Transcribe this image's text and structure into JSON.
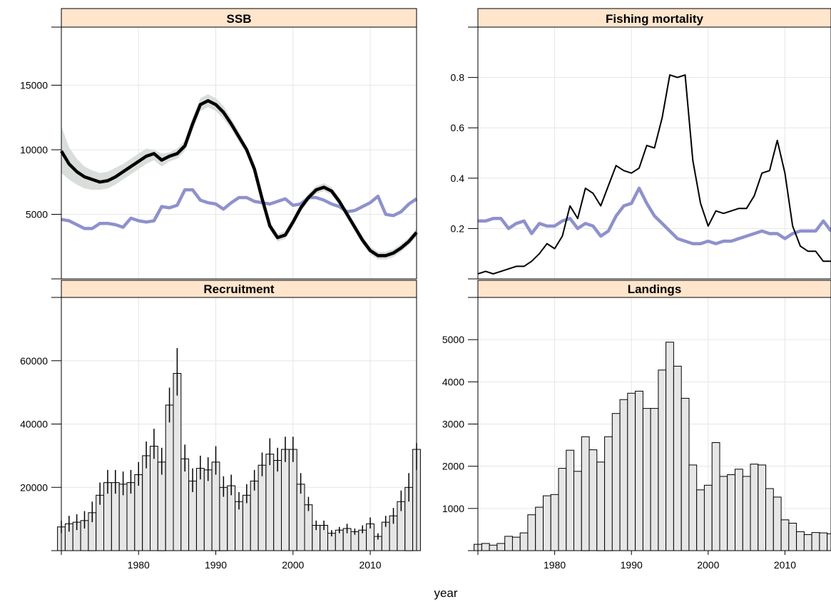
{
  "figure": {
    "xlabel": "year",
    "colors": {
      "strip_fill": "#FFE5CC",
      "grid": "#E6E6E6",
      "band": "#D9DEDB",
      "bar_fill": "#E6E6E6",
      "reference_line": "#8E91CC",
      "main_line": "#000000"
    }
  },
  "chart_data": [
    {
      "id": "ssb",
      "type": "line",
      "title": "SSB",
      "xlim": [
        1970,
        2016
      ],
      "ylim": [
        0,
        19500
      ],
      "yticks": [
        5000,
        10000,
        15000
      ],
      "xticks": [],
      "x": [
        1970,
        1971,
        1972,
        1973,
        1974,
        1975,
        1976,
        1977,
        1978,
        1979,
        1980,
        1981,
        1982,
        1983,
        1984,
        1985,
        1986,
        1987,
        1988,
        1989,
        1990,
        1991,
        1992,
        1993,
        1994,
        1995,
        1996,
        1997,
        1998,
        1999,
        2000,
        2001,
        2002,
        2003,
        2004,
        2005,
        2006,
        2007,
        2008,
        2009,
        2010,
        2011,
        2012,
        2013,
        2014,
        2015,
        2016
      ],
      "series": [
        {
          "role": "estimate",
          "values": [
            9900,
            8900,
            8300,
            7900,
            7700,
            7500,
            7600,
            7900,
            8300,
            8700,
            9100,
            9500,
            9700,
            9200,
            9500,
            9700,
            10300,
            12000,
            13500,
            13800,
            13500,
            12900,
            12000,
            11000,
            10000,
            8500,
            6200,
            4100,
            3200,
            3400,
            4400,
            5500,
            6300,
            6900,
            7100,
            6800,
            6000,
            5000,
            4000,
            3000,
            2200,
            1800,
            1800,
            2000,
            2400,
            2900,
            3600
          ]
        },
        {
          "role": "upper-ci",
          "values": [
            11800,
            10200,
            9300,
            8700,
            8400,
            8200,
            8300,
            8600,
            8900,
            9300,
            9700,
            10100,
            10000,
            9700,
            9800,
            10100,
            10700,
            12500,
            14000,
            14300,
            14000,
            13400,
            12400,
            11400,
            10300,
            8800,
            6500,
            4400,
            3500,
            3700,
            4700,
            5800,
            6600,
            7200,
            7400,
            7100,
            6300,
            5300,
            4300,
            3300,
            2500,
            2100,
            2100,
            2300,
            2700,
            3200,
            3900
          ]
        },
        {
          "role": "lower-ci",
          "values": [
            8200,
            7700,
            7300,
            7000,
            6900,
            6900,
            7000,
            7300,
            7700,
            8100,
            8500,
            8900,
            9200,
            8700,
            9100,
            9300,
            9900,
            11500,
            13000,
            13300,
            13000,
            12400,
            11600,
            10600,
            9700,
            8200,
            5900,
            3800,
            2900,
            3100,
            4100,
            5200,
            6000,
            6600,
            6800,
            6500,
            5700,
            4700,
            3700,
            2700,
            1900,
            1500,
            1500,
            1700,
            2100,
            2600,
            3300
          ]
        },
        {
          "role": "reference",
          "values": [
            4600,
            4500,
            4200,
            3900,
            3900,
            4300,
            4300,
            4200,
            4000,
            4700,
            4500,
            4400,
            4500,
            5600,
            5500,
            5700,
            6900,
            6900,
            6100,
            5900,
            5800,
            5400,
            5900,
            6300,
            6300,
            6000,
            5900,
            5800,
            6000,
            6200,
            5700,
            5800,
            6300,
            6300,
            6100,
            5800,
            5600,
            5200,
            5300,
            5600,
            5900,
            6400,
            5000,
            4900,
            5200,
            5800,
            6200
          ]
        }
      ]
    },
    {
      "id": "fishing-mortality",
      "type": "line",
      "title": "Fishing mortality",
      "xlim": [
        1970,
        2016
      ],
      "ylim": [
        0,
        1.0
      ],
      "yticks": [
        0.2,
        0.4,
        0.6,
        0.8
      ],
      "xticks": [],
      "x": [
        1970,
        1971,
        1972,
        1973,
        1974,
        1975,
        1976,
        1977,
        1978,
        1979,
        1980,
        1981,
        1982,
        1983,
        1984,
        1985,
        1986,
        1987,
        1988,
        1989,
        1990,
        1991,
        1992,
        1993,
        1994,
        1995,
        1996,
        1997,
        1998,
        1999,
        2000,
        2001,
        2002,
        2003,
        2004,
        2005,
        2006,
        2007,
        2008,
        2009,
        2010,
        2011,
        2012,
        2013,
        2014,
        2015,
        2016
      ],
      "series": [
        {
          "role": "estimate",
          "values": [
            0.02,
            0.03,
            0.02,
            0.03,
            0.04,
            0.05,
            0.05,
            0.07,
            0.1,
            0.14,
            0.12,
            0.17,
            0.29,
            0.24,
            0.36,
            0.34,
            0.29,
            0.37,
            0.45,
            0.43,
            0.42,
            0.44,
            0.53,
            0.52,
            0.64,
            0.81,
            0.8,
            0.81,
            0.47,
            0.3,
            0.21,
            0.27,
            0.26,
            0.27,
            0.28,
            0.28,
            0.33,
            0.42,
            0.43,
            0.55,
            0.42,
            0.21,
            0.13,
            0.11,
            0.11,
            0.07,
            0.07
          ]
        },
        {
          "role": "reference",
          "values": [
            0.23,
            0.23,
            0.24,
            0.24,
            0.2,
            0.22,
            0.23,
            0.18,
            0.22,
            0.21,
            0.21,
            0.23,
            0.24,
            0.2,
            0.22,
            0.21,
            0.17,
            0.19,
            0.25,
            0.29,
            0.3,
            0.36,
            0.3,
            0.25,
            0.22,
            0.19,
            0.16,
            0.15,
            0.14,
            0.14,
            0.15,
            0.14,
            0.15,
            0.15,
            0.16,
            0.17,
            0.18,
            0.19,
            0.18,
            0.18,
            0.16,
            0.18,
            0.19,
            0.19,
            0.19,
            0.23,
            0.19
          ]
        }
      ]
    },
    {
      "id": "recruitment",
      "type": "bar",
      "title": "Recruitment",
      "xlim": [
        1970,
        2016
      ],
      "ylim": [
        0,
        80000
      ],
      "yticks": [
        20000,
        40000,
        60000
      ],
      "xticks": [
        1980,
        1990,
        2000,
        2010
      ],
      "x": [
        1970,
        1971,
        1972,
        1973,
        1974,
        1975,
        1976,
        1977,
        1978,
        1979,
        1980,
        1981,
        1982,
        1983,
        1984,
        1985,
        1986,
        1987,
        1988,
        1989,
        1990,
        1991,
        1992,
        1993,
        1994,
        1995,
        1996,
        1997,
        1998,
        1999,
        2000,
        2001,
        2002,
        2003,
        2004,
        2005,
        2006,
        2007,
        2008,
        2009,
        2010,
        2011,
        2012,
        2013,
        2014,
        2015,
        2016
      ],
      "values": [
        7500,
        8500,
        9000,
        9500,
        12000,
        17500,
        21500,
        21500,
        21000,
        21500,
        24000,
        30000,
        33000,
        28000,
        46000,
        56000,
        29000,
        22000,
        26000,
        25500,
        28000,
        20000,
        20500,
        15500,
        17500,
        22000,
        27000,
        30500,
        28500,
        32000,
        32000,
        21000,
        14500,
        8000,
        8000,
        5500,
        6500,
        7000,
        6000,
        6500,
        8500,
        4500,
        9000,
        11000,
        15500,
        20000,
        32000
      ],
      "lower": [
        5500,
        6000,
        6500,
        7000,
        9000,
        14500,
        18000,
        18000,
        17500,
        18000,
        20500,
        26000,
        29000,
        24000,
        40500,
        49000,
        25000,
        18500,
        22500,
        22000,
        24000,
        17000,
        17500,
        13000,
        15000,
        19000,
        23500,
        27000,
        25000,
        28000,
        28000,
        18000,
        12500,
        6500,
        6500,
        4500,
        5500,
        5500,
        5000,
        5500,
        7000,
        3500,
        7500,
        8500,
        12500,
        15500,
        25500
      ],
      "upper": [
        9500,
        11000,
        11500,
        12500,
        15500,
        21500,
        25500,
        25500,
        25000,
        25500,
        28000,
        34500,
        38500,
        32500,
        51500,
        64000,
        33500,
        26000,
        30000,
        29500,
        33000,
        23500,
        24000,
        18500,
        21000,
        25500,
        31000,
        35500,
        32500,
        36000,
        36000,
        24500,
        17000,
        9500,
        9500,
        6500,
        7500,
        8500,
        7000,
        8000,
        10500,
        5500,
        11000,
        13500,
        19000,
        24500,
        34000
      ]
    },
    {
      "id": "landings",
      "type": "bar",
      "title": "Landings",
      "xlim": [
        1970,
        2016
      ],
      "ylim": [
        0,
        6000
      ],
      "yticks": [
        1000,
        2000,
        3000,
        4000,
        5000
      ],
      "xticks": [
        1980,
        1990,
        2000,
        2010
      ],
      "x": [
        1970,
        1971,
        1972,
        1973,
        1974,
        1975,
        1976,
        1977,
        1978,
        1979,
        1980,
        1981,
        1982,
        1983,
        1984,
        1985,
        1986,
        1987,
        1988,
        1989,
        1990,
        1991,
        1992,
        1993,
        1994,
        1995,
        1996,
        1997,
        1998,
        1999,
        2000,
        2001,
        2002,
        2003,
        2004,
        2005,
        2006,
        2007,
        2008,
        2009,
        2010,
        2011,
        2012,
        2013,
        2014,
        2015,
        2016
      ],
      "values": [
        150,
        170,
        130,
        170,
        340,
        320,
        420,
        850,
        1030,
        1300,
        1330,
        1950,
        2380,
        1880,
        2700,
        2390,
        2100,
        2700,
        3250,
        3580,
        3730,
        3780,
        3370,
        3370,
        4280,
        4940,
        4370,
        3610,
        2030,
        1440,
        1550,
        2560,
        1760,
        1800,
        1930,
        1760,
        2050,
        2030,
        1470,
        1270,
        730,
        650,
        450,
        380,
        430,
        420,
        400
      ]
    }
  ]
}
